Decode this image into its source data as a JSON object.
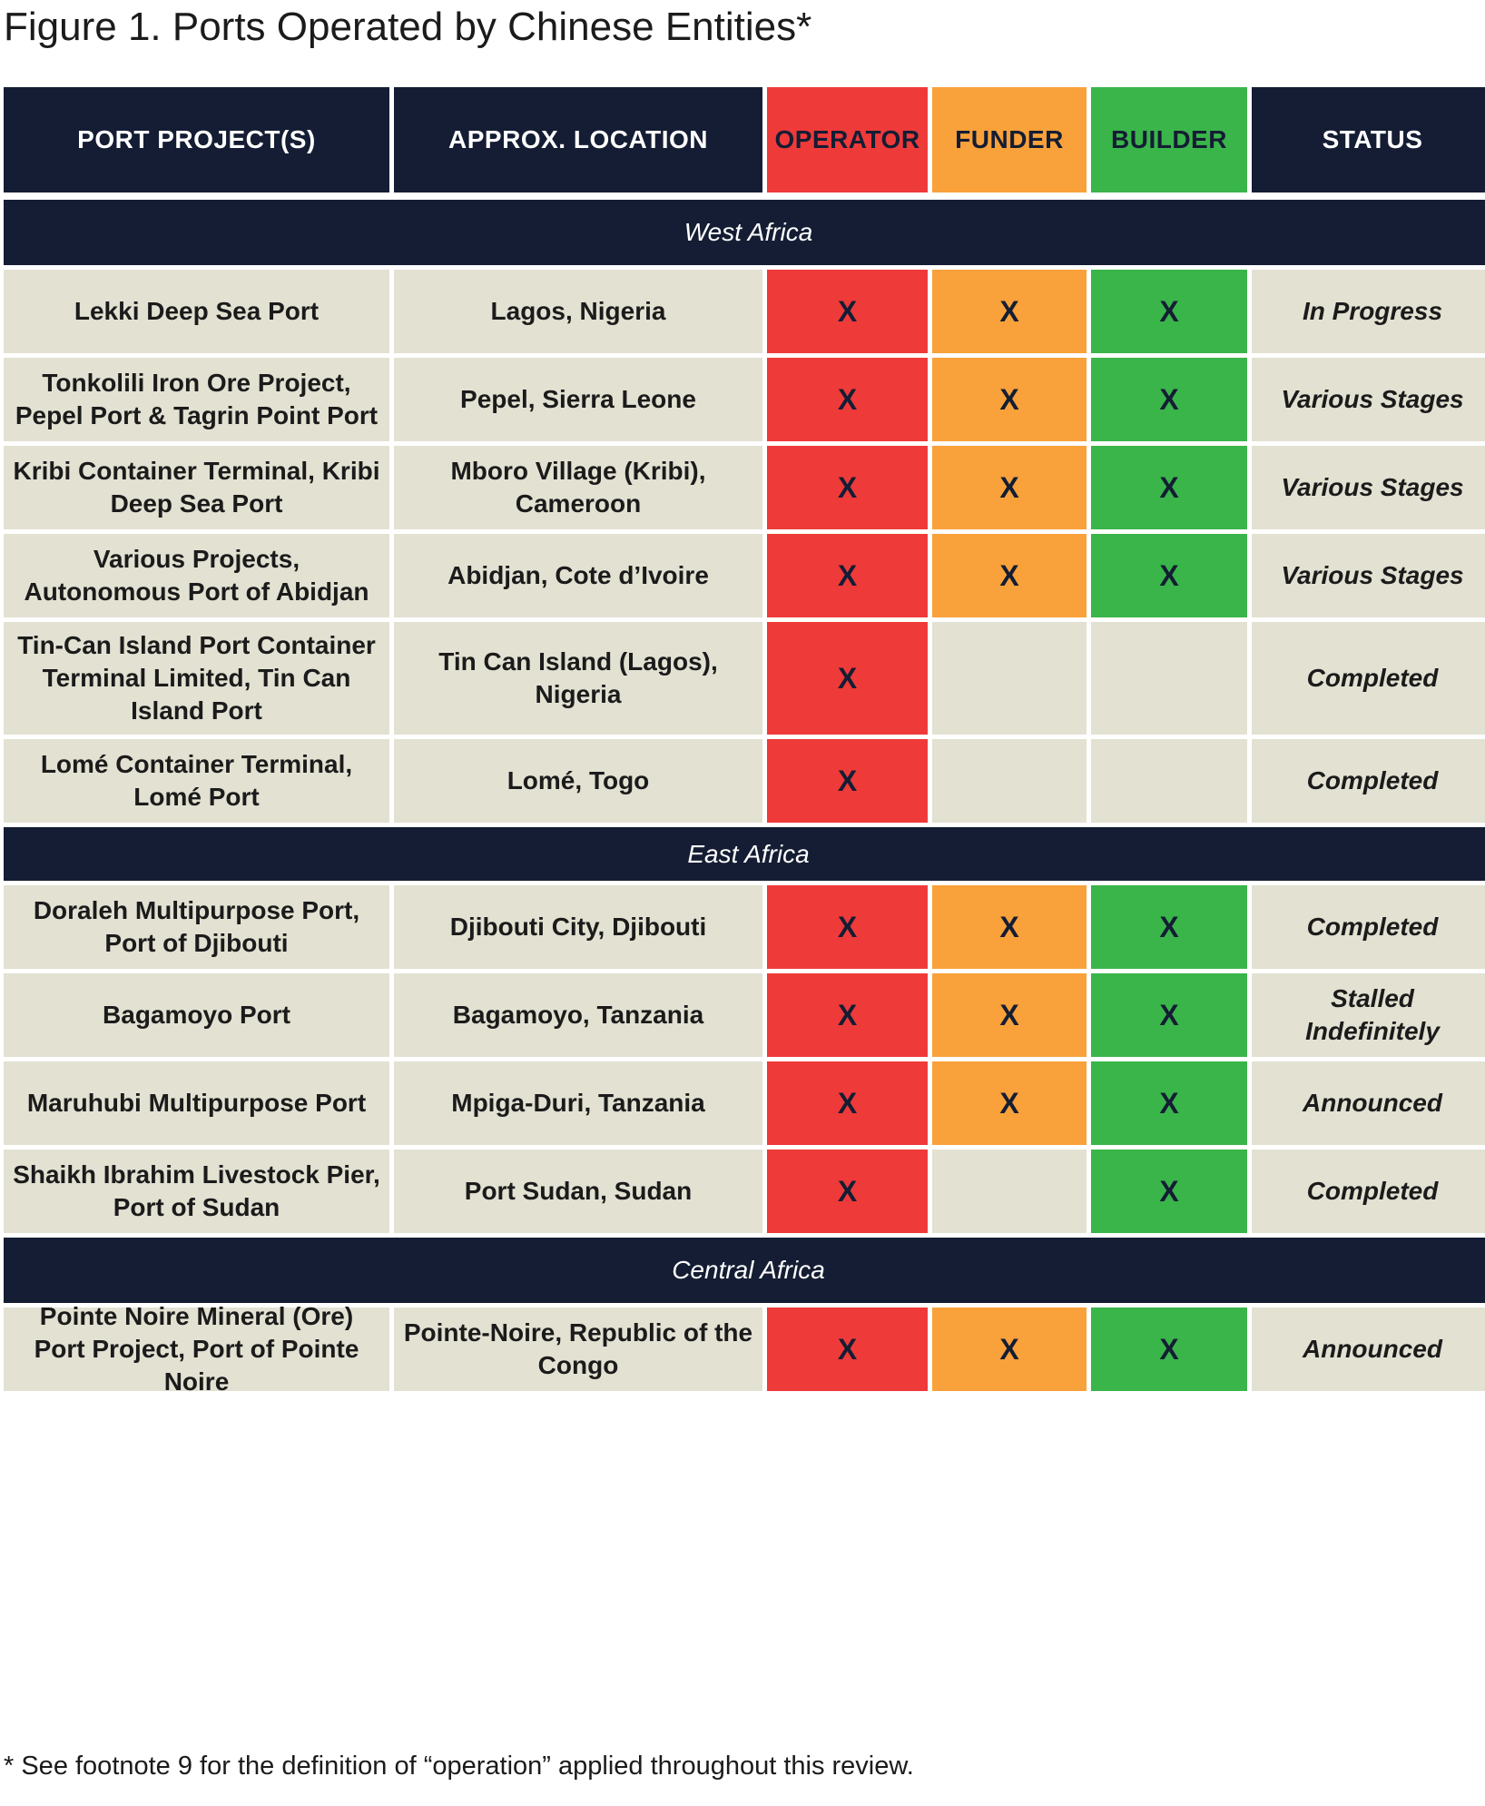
{
  "title": "Figure 1. Ports Operated by Chinese Entities*",
  "columns": {
    "project": "PORT PROJECT(S)",
    "location": "APPROX. LOCATION",
    "operator": "OPERATOR",
    "funder": "FUNDER",
    "builder": "BUILDER",
    "status": "STATUS"
  },
  "colors": {
    "navy": "#141d33",
    "operator": "#ef3a3a",
    "funder": "#f9a13a",
    "builder": "#3ab54a",
    "beige": "#e3e1d2"
  },
  "mark": "X",
  "regions": [
    {
      "name": "West Africa",
      "rows": [
        {
          "project": "Lekki Deep Sea Port",
          "location": "Lagos, Nigeria",
          "operator": true,
          "funder": true,
          "builder": true,
          "status": "In Progress"
        },
        {
          "project": "Tonkolili Iron Ore Project, Pepel Port & Tagrin Point Port",
          "location": "Pepel, Sierra Leone",
          "operator": true,
          "funder": true,
          "builder": true,
          "status": "Various Stages"
        },
        {
          "project": "Kribi Container Terminal, Kribi Deep Sea Port",
          "location": "Mboro Village (Kribi), Cameroon",
          "operator": true,
          "funder": true,
          "builder": true,
          "status": "Various Stages"
        },
        {
          "project": "Various Projects, Autonomous Port of Abidjan",
          "location": "Abidjan, Cote d’Ivoire",
          "operator": true,
          "funder": true,
          "builder": true,
          "status": "Various Stages"
        },
        {
          "project": "Tin-Can Island Port Container Terminal Limited, Tin Can Island Port",
          "location": "Tin Can Island (Lagos), Nigeria",
          "operator": true,
          "funder": false,
          "builder": false,
          "status": "Completed"
        },
        {
          "project": "Lomé Container Terminal, Lomé Port",
          "location": "Lomé, Togo",
          "operator": true,
          "funder": false,
          "builder": false,
          "status": "Completed"
        }
      ]
    },
    {
      "name": "East Africa",
      "rows": [
        {
          "project": "Doraleh Multipurpose Port, Port of Djibouti",
          "location": "Djibouti City, Djibouti",
          "operator": true,
          "funder": true,
          "builder": true,
          "status": "Completed"
        },
        {
          "project": "Bagamoyo Port",
          "location": "Bagamoyo, Tanzania",
          "operator": true,
          "funder": true,
          "builder": true,
          "status": "Stalled Indefinitely"
        },
        {
          "project": "Maruhubi Multipurpose Port",
          "location": "Mpiga-Duri, Tanzania",
          "operator": true,
          "funder": true,
          "builder": true,
          "status": "Announced"
        },
        {
          "project": "Shaikh Ibrahim Livestock Pier, Port of Sudan",
          "location": "Port Sudan, Sudan",
          "operator": true,
          "funder": false,
          "builder": true,
          "status": "Completed"
        }
      ]
    },
    {
      "name": "Central Africa",
      "rows": [
        {
          "project": "Pointe Noire Mineral (Ore) Port Project, Port of Pointe Noire",
          "location": "Pointe-Noire, Republic of the Congo",
          "operator": true,
          "funder": true,
          "builder": true,
          "status": "Announced"
        }
      ]
    }
  ],
  "footnote": "* See footnote 9 for the definition of “operation” applied throughout this review."
}
